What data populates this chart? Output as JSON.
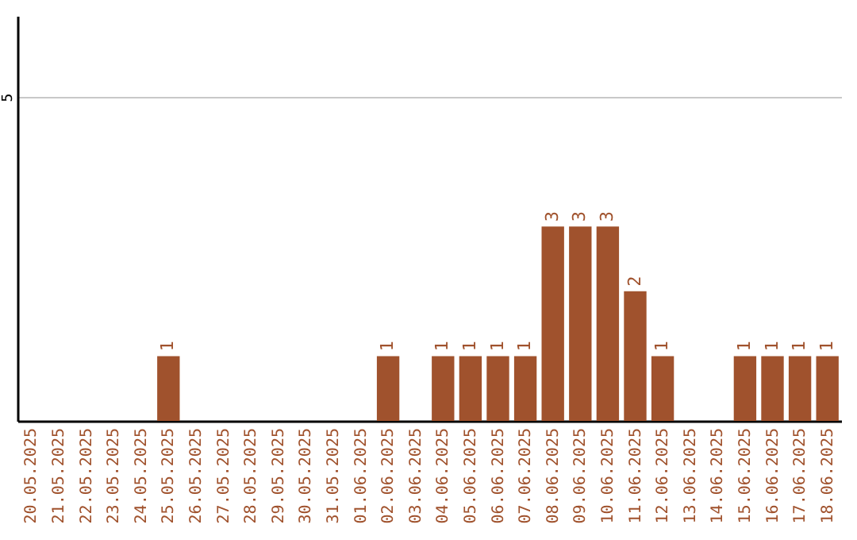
{
  "chart_data": {
    "type": "bar",
    "categories": [
      "20.05.2025",
      "21.05.2025",
      "22.05.2025",
      "23.05.2025",
      "24.05.2025",
      "25.05.2025",
      "26.05.2025",
      "27.05.2025",
      "28.05.2025",
      "29.05.2025",
      "30.05.2025",
      "31.05.2025",
      "01.06.2025",
      "02.06.2025",
      "03.06.2025",
      "04.06.2025",
      "05.06.2025",
      "06.06.2025",
      "07.06.2025",
      "08.06.2025",
      "09.06.2025",
      "10.06.2025",
      "11.06.2025",
      "12.06.2025",
      "13.06.2025",
      "14.06.2025",
      "15.06.2025",
      "16.06.2025",
      "17.06.2025",
      "18.06.2025"
    ],
    "values": [
      0,
      0,
      0,
      0,
      0,
      1,
      0,
      0,
      0,
      0,
      0,
      0,
      0,
      1,
      0,
      1,
      1,
      1,
      1,
      3,
      3,
      3,
      2,
      1,
      0,
      0,
      1,
      1,
      1,
      1
    ],
    "value_labels": [
      null,
      null,
      null,
      null,
      null,
      "1",
      null,
      null,
      null,
      null,
      null,
      null,
      null,
      "1",
      null,
      "1",
      "1",
      "1",
      "1",
      "3",
      "3",
      "3",
      "2",
      "1",
      null,
      null,
      "1",
      "1",
      "1",
      "1"
    ],
    "color": "#a0522d",
    "ylim": [
      0,
      6.25
    ],
    "yticks": [
      5
    ],
    "grid": "y"
  }
}
